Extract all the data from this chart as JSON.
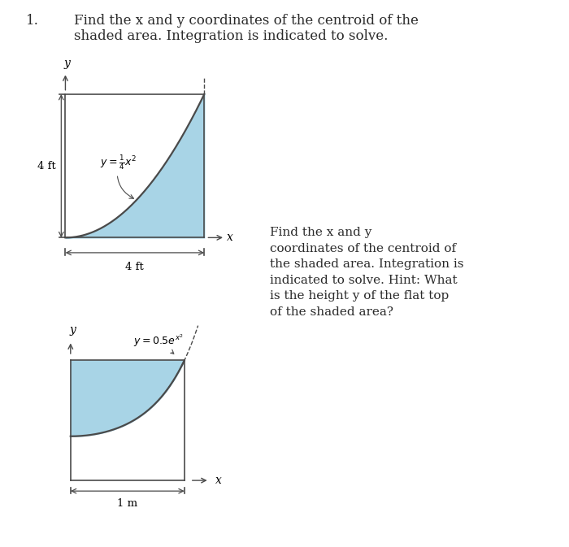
{
  "title_number": "1.",
  "title_text": "Find the x and y coordinates of the centroid of the\nshaded area. Integration is indicated to solve.",
  "fig_width": 7.0,
  "fig_height": 6.73,
  "background_color": "#ffffff",
  "shade_color": "#a8d4e6",
  "line_color": "#4a4a4a",
  "text_color": "#2a2a2a",
  "second_text": "Find the x and y\ncoordinates of the centroid of\nthe shaded area. Integration is\nindicated to solve. Hint: What\nis the height y of the flat top\nof the shaded area?"
}
